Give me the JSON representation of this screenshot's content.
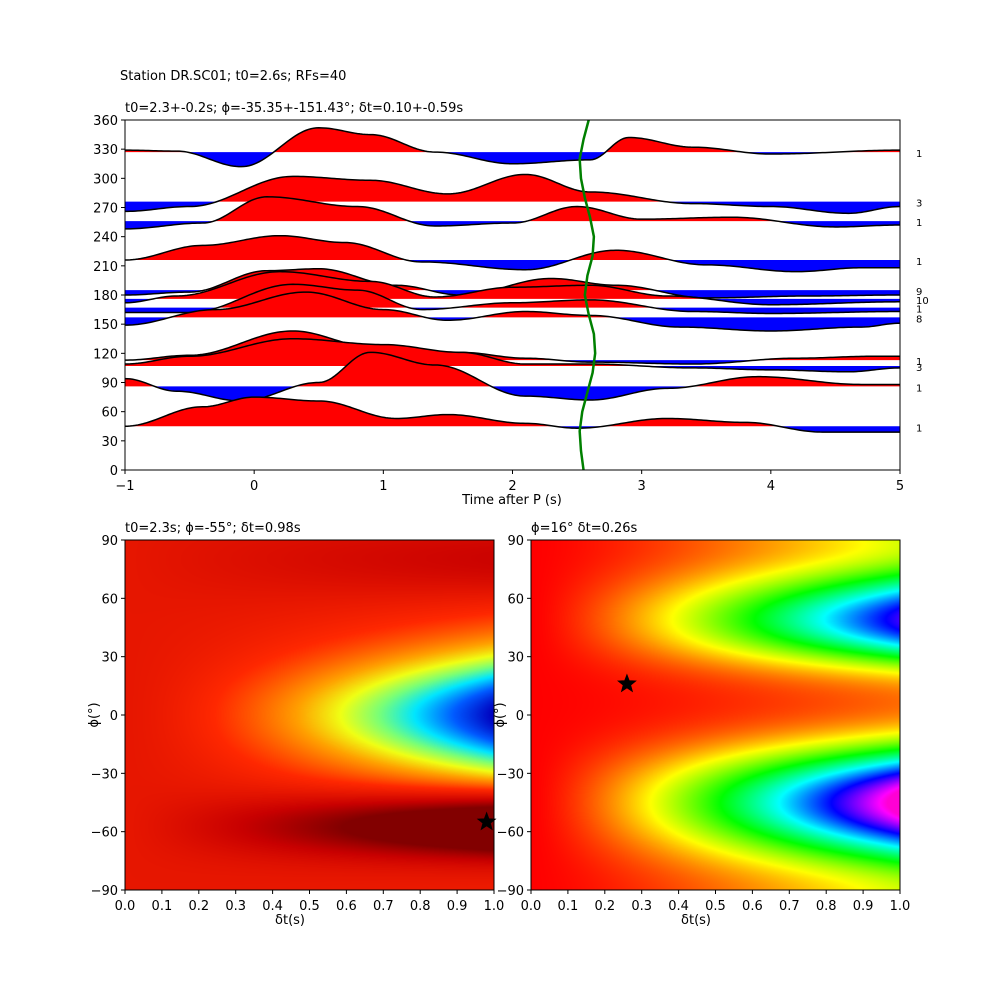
{
  "figure": {
    "suptitle": "Station DR.SC01; t0=2.6s; RFs=40"
  },
  "chart_data": [
    {
      "type": "line",
      "panel": "receiver-functions",
      "title": "t0=2.3+-0.2s; ϕ=-35.35+-151.43°; δt=0.10+-0.59s",
      "xlabel": "Time after P (s)",
      "ylabel": "",
      "xlim": [
        -1,
        5
      ],
      "ylim": [
        0,
        360
      ],
      "xticks": [
        "−1",
        "0",
        "1",
        "2",
        "3",
        "4",
        "5"
      ],
      "yticks": [
        "0",
        "30",
        "60",
        "90",
        "120",
        "150",
        "180",
        "210",
        "240",
        "270",
        "300",
        "330",
        "360"
      ],
      "fill_colors": {
        "positive": "#ff0000",
        "negative": "#0000ff"
      },
      "t0_curve": {
        "color": "#008000",
        "x": [
          2.55,
          2.53,
          2.52,
          2.54,
          2.58,
          2.62,
          2.64,
          2.63,
          2.59,
          2.56,
          2.58,
          2.62,
          2.63,
          2.6,
          2.56,
          2.53,
          2.52,
          2.55,
          2.59
        ],
        "y": [
          0,
          20,
          40,
          60,
          80,
          100,
          120,
          140,
          160,
          180,
          200,
          220,
          240,
          260,
          280,
          300,
          320,
          340,
          360
        ]
      },
      "traces": [
        {
          "baz": 327,
          "count": "1",
          "keys": [
            [
              -1,
              2
            ],
            [
              -0.6,
              1
            ],
            [
              -0.1,
              -15
            ],
            [
              0.5,
              25
            ],
            [
              0.9,
              18
            ],
            [
              1.4,
              0
            ],
            [
              2.0,
              -12
            ],
            [
              2.6,
              -8
            ],
            [
              2.9,
              15
            ],
            [
              3.4,
              5
            ],
            [
              4.0,
              -2
            ],
            [
              5.0,
              2
            ]
          ]
        },
        {
          "baz": 276,
          "count": "3",
          "keys": [
            [
              -1,
              -10
            ],
            [
              -0.5,
              -5
            ],
            [
              0.3,
              26
            ],
            [
              0.9,
              22
            ],
            [
              1.5,
              8
            ],
            [
              2.1,
              28
            ],
            [
              2.6,
              10
            ],
            [
              3.4,
              -2
            ],
            [
              4.0,
              -5
            ],
            [
              4.6,
              -12
            ],
            [
              5.0,
              -5
            ]
          ]
        },
        {
          "baz": 256,
          "count": "1",
          "keys": [
            [
              -1,
              -8
            ],
            [
              -0.4,
              -2
            ],
            [
              0.1,
              25
            ],
            [
              0.8,
              15
            ],
            [
              1.4,
              -5
            ],
            [
              2.0,
              -2
            ],
            [
              2.5,
              15
            ],
            [
              3.0,
              2
            ],
            [
              3.7,
              4
            ],
            [
              4.5,
              -6
            ],
            [
              5.0,
              -4
            ]
          ]
        },
        {
          "baz": 216,
          "count": "1",
          "keys": [
            [
              -1,
              0
            ],
            [
              -0.4,
              15
            ],
            [
              0.2,
              25
            ],
            [
              0.7,
              18
            ],
            [
              1.3,
              -2
            ],
            [
              2.1,
              -10
            ],
            [
              2.8,
              10
            ],
            [
              3.5,
              -5
            ],
            [
              4.2,
              -12
            ],
            [
              4.7,
              -8
            ],
            [
              5.0,
              -8
            ]
          ]
        },
        {
          "baz": 185,
          "count": "9",
          "keys": [
            [
              -1,
              -5
            ],
            [
              -0.5,
              -2
            ],
            [
              0.1,
              20
            ],
            [
              0.5,
              22
            ],
            [
              1.1,
              5
            ],
            [
              1.6,
              -5
            ],
            [
              2.3,
              12
            ],
            [
              2.8,
              5
            ],
            [
              3.5,
              -8
            ],
            [
              4.3,
              -6
            ],
            [
              5.0,
              -5
            ]
          ]
        },
        {
          "baz": 176,
          "count": "10",
          "keys": [
            [
              -1,
              -4
            ],
            [
              -0.6,
              3
            ],
            [
              0.2,
              28
            ],
            [
              0.9,
              18
            ],
            [
              1.4,
              2
            ],
            [
              2.0,
              12
            ],
            [
              2.6,
              14
            ],
            [
              3.2,
              3
            ],
            [
              4.0,
              -6
            ],
            [
              5.0,
              -3
            ]
          ]
        },
        {
          "baz": 167,
          "count": "1",
          "keys": [
            [
              -1,
              -5
            ],
            [
              -0.5,
              -5
            ],
            [
              0.3,
              24
            ],
            [
              0.8,
              18
            ],
            [
              1.3,
              -2
            ],
            [
              2.0,
              5
            ],
            [
              2.6,
              8
            ],
            [
              3.4,
              -4
            ],
            [
              4.0,
              -6
            ],
            [
              5.0,
              -4
            ]
          ]
        },
        {
          "baz": 157,
          "count": "8",
          "keys": [
            [
              -1,
              -8
            ],
            [
              -0.3,
              8
            ],
            [
              0.4,
              26
            ],
            [
              1.0,
              8
            ],
            [
              1.5,
              -3
            ],
            [
              2.1,
              6
            ],
            [
              2.6,
              2
            ],
            [
              3.3,
              -10
            ],
            [
              4.0,
              -14
            ],
            [
              4.7,
              -10
            ],
            [
              5.0,
              -6
            ]
          ]
        },
        {
          "baz": 113,
          "count": "1",
          "keys": [
            [
              -1,
              0
            ],
            [
              -0.5,
              5
            ],
            [
              0.3,
              30
            ],
            [
              0.9,
              14
            ],
            [
              1.6,
              8
            ],
            [
              2.1,
              2
            ],
            [
              2.6,
              -2
            ],
            [
              3.4,
              -4
            ],
            [
              4.2,
              2
            ],
            [
              4.8,
              4
            ],
            [
              5.0,
              4
            ]
          ]
        },
        {
          "baz": 107,
          "count": "3",
          "keys": [
            [
              -1,
              2
            ],
            [
              -0.5,
              10
            ],
            [
              0.3,
              28
            ],
            [
              1.0,
              22
            ],
            [
              1.6,
              14
            ],
            [
              2.1,
              2
            ],
            [
              2.6,
              2
            ],
            [
              3.4,
              -2
            ],
            [
              4.0,
              -4
            ],
            [
              4.6,
              -6
            ],
            [
              5.0,
              -2
            ]
          ]
        },
        {
          "baz": 86,
          "count": "1",
          "keys": [
            [
              -1,
              8
            ],
            [
              -0.6,
              -5
            ],
            [
              -0.1,
              -15
            ],
            [
              0.5,
              4
            ],
            [
              0.9,
              35
            ],
            [
              1.4,
              22
            ],
            [
              2.1,
              -10
            ],
            [
              2.6,
              -14
            ],
            [
              3.2,
              -2
            ],
            [
              3.9,
              10
            ],
            [
              4.7,
              2
            ],
            [
              5.0,
              2
            ]
          ]
        },
        {
          "baz": 45,
          "count": "1",
          "keys": [
            [
              -1,
              0
            ],
            [
              -0.4,
              20
            ],
            [
              0.0,
              30
            ],
            [
              0.5,
              26
            ],
            [
              1.1,
              8
            ],
            [
              1.5,
              12
            ],
            [
              2.1,
              3
            ],
            [
              2.5,
              -2
            ],
            [
              3.2,
              8
            ],
            [
              3.8,
              4
            ],
            [
              4.4,
              -6
            ],
            [
              5.0,
              -6
            ]
          ]
        }
      ]
    },
    {
      "type": "heatmap",
      "panel": "grid-search-1",
      "title": "t0=2.3s; ϕ=-55°; δt=0.98s",
      "xlabel": "δt(s)",
      "ylabel": "ϕ(°)",
      "xlim": [
        0,
        1
      ],
      "ylim": [
        -90,
        90
      ],
      "xticks": [
        "0.0",
        "0.1",
        "0.2",
        "0.3",
        "0.4",
        "0.5",
        "0.6",
        "0.7",
        "0.8",
        "0.9",
        "1.0"
      ],
      "yticks": [
        "−90",
        "−60",
        "−30",
        "0",
        "30",
        "60",
        "90"
      ],
      "best": {
        "dt": 0.98,
        "phi": -55
      }
    },
    {
      "type": "heatmap",
      "panel": "grid-search-2",
      "title": "ϕ=16° δt=0.26s",
      "xlabel": "δt(s)",
      "ylabel": "ϕ(°)",
      "xlim": [
        0,
        1
      ],
      "ylim": [
        -90,
        90
      ],
      "xticks": [
        "0.0",
        "0.1",
        "0.2",
        "0.3",
        "0.4",
        "0.5",
        "0.6",
        "0.7",
        "0.8",
        "0.9",
        "1.0"
      ],
      "yticks": [
        "−90",
        "−60",
        "−30",
        "0",
        "30",
        "60",
        "90"
      ],
      "best": {
        "dt": 0.26,
        "phi": 16
      }
    }
  ]
}
